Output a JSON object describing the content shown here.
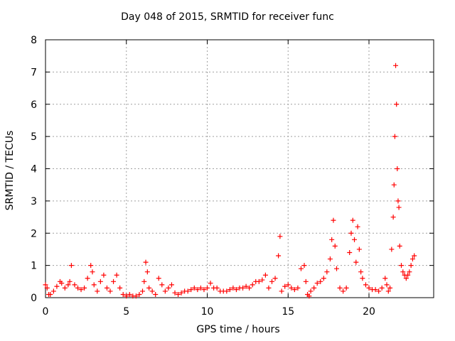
{
  "chart_data": {
    "type": "scatter",
    "title": "Day 048 of 2015, SRMTID for receiver func",
    "xlabel": "GPS time / hours",
    "ylabel": "SRMTID / TECUs",
    "xlim": [
      0,
      24
    ],
    "ylim": [
      0,
      8
    ],
    "xticks": [
      0,
      5,
      10,
      15,
      20
    ],
    "xtick_labels": [
      "0",
      "5",
      "10",
      "15",
      "20"
    ],
    "yticks": [
      0,
      1,
      2,
      3,
      4,
      5,
      6,
      7,
      8
    ],
    "ytick_labels": [
      "0",
      "1",
      "2",
      "3",
      "4",
      "5",
      "6",
      "7",
      "8"
    ],
    "grid": true,
    "marker": "+",
    "color": "#ff0000",
    "series": [
      {
        "name": "SRMTID",
        "x": [
          0.0,
          0.1,
          0.2,
          0.3,
          0.5,
          0.7,
          0.9,
          1.0,
          1.2,
          1.4,
          1.5,
          1.6,
          1.8,
          2.0,
          2.2,
          2.4,
          2.6,
          2.8,
          2.9,
          3.0,
          3.2,
          3.4,
          3.6,
          3.8,
          4.0,
          4.2,
          4.4,
          4.6,
          4.8,
          5.0,
          5.2,
          5.4,
          5.6,
          5.8,
          6.0,
          6.1,
          6.2,
          6.3,
          6.4,
          6.6,
          6.8,
          7.0,
          7.2,
          7.4,
          7.6,
          7.8,
          8.0,
          8.2,
          8.4,
          8.6,
          8.8,
          9.0,
          9.2,
          9.4,
          9.6,
          9.8,
          10.0,
          10.2,
          10.4,
          10.6,
          10.8,
          11.0,
          11.2,
          11.4,
          11.6,
          11.8,
          12.0,
          12.2,
          12.4,
          12.6,
          12.8,
          13.0,
          13.2,
          13.4,
          13.6,
          13.8,
          14.0,
          14.2,
          14.4,
          14.5,
          14.6,
          14.8,
          15.0,
          15.2,
          15.4,
          15.6,
          15.8,
          16.0,
          16.1,
          16.2,
          16.3,
          16.4,
          16.6,
          16.8,
          17.0,
          17.2,
          17.4,
          17.6,
          17.7,
          17.8,
          17.9,
          18.0,
          18.2,
          18.4,
          18.6,
          18.8,
          18.9,
          19.0,
          19.1,
          19.2,
          19.3,
          19.4,
          19.5,
          19.6,
          19.8,
          20.0,
          20.2,
          20.4,
          20.6,
          20.8,
          21.0,
          21.1,
          21.2,
          21.3,
          21.4,
          21.5,
          21.55,
          21.6,
          21.65,
          21.7,
          21.75,
          21.8,
          21.85,
          21.9,
          22.0,
          22.1,
          22.2,
          22.3,
          22.4,
          22.5,
          22.6,
          22.7,
          22.8
        ],
        "y": [
          0.4,
          0.3,
          0.1,
          0.1,
          0.2,
          0.35,
          0.5,
          0.45,
          0.3,
          0.4,
          0.5,
          1.0,
          0.4,
          0.3,
          0.25,
          0.3,
          0.6,
          1.0,
          0.8,
          0.4,
          0.2,
          0.5,
          0.7,
          0.3,
          0.2,
          0.5,
          0.7,
          0.3,
          0.1,
          0.05,
          0.1,
          0.05,
          0.05,
          0.1,
          0.2,
          0.5,
          1.1,
          0.8,
          0.3,
          0.2,
          0.1,
          0.6,
          0.4,
          0.2,
          0.3,
          0.4,
          0.15,
          0.1,
          0.15,
          0.2,
          0.2,
          0.25,
          0.3,
          0.25,
          0.3,
          0.25,
          0.3,
          0.45,
          0.3,
          0.3,
          0.2,
          0.2,
          0.2,
          0.25,
          0.3,
          0.25,
          0.3,
          0.3,
          0.35,
          0.3,
          0.4,
          0.5,
          0.5,
          0.55,
          0.7,
          0.3,
          0.5,
          0.6,
          1.3,
          1.9,
          0.2,
          0.35,
          0.4,
          0.3,
          0.25,
          0.3,
          0.9,
          1.0,
          0.5,
          0.1,
          0.05,
          0.2,
          0.3,
          0.45,
          0.5,
          0.6,
          0.8,
          1.2,
          1.8,
          2.4,
          1.6,
          0.9,
          0.3,
          0.2,
          0.3,
          1.4,
          2.0,
          2.4,
          1.8,
          1.1,
          2.2,
          1.5,
          0.8,
          0.6,
          0.4,
          0.3,
          0.25,
          0.25,
          0.2,
          0.3,
          0.6,
          0.4,
          0.2,
          0.3,
          1.5,
          2.5,
          3.5,
          5.0,
          7.2,
          6.0,
          4.0,
          3.0,
          2.8,
          1.6,
          1.0,
          0.8,
          0.7,
          0.6,
          0.7,
          0.8,
          1.0,
          1.2,
          1.3
        ]
      }
    ]
  }
}
